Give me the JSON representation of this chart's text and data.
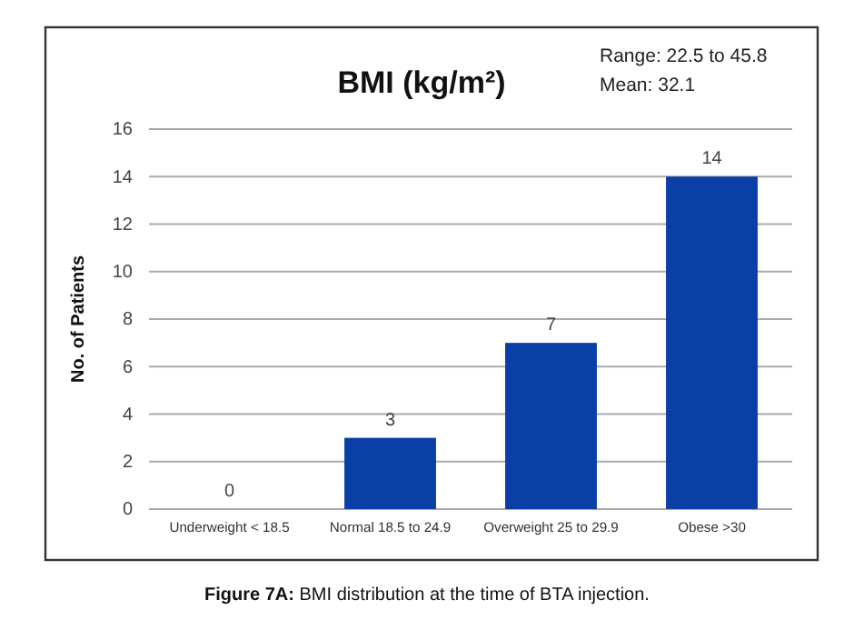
{
  "chart_data": {
    "type": "bar",
    "title": "BMI (kg/m²)",
    "ylabel": "No. of Patients",
    "categories": [
      "Underweight < 18.5",
      "Normal 18.5 to 24.9",
      "Overweight 25 to 29.9",
      "Obese >30"
    ],
    "values": [
      0,
      3,
      7,
      14
    ],
    "color": "#0a3fa6",
    "data_labels": true,
    "ylim": [
      0,
      16
    ],
    "yticks": [
      0,
      2,
      4,
      6,
      8,
      10,
      12,
      14,
      16
    ],
    "grid": "y",
    "annotations": [
      "Range: 22.5 to 45.8",
      "Mean: 32.1",
      "Figure 7A: BMI distribution at the time of BTA injection."
    ]
  }
}
